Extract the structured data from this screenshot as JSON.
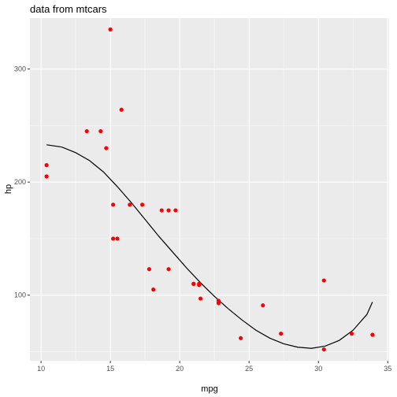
{
  "chart_data": {
    "type": "scatter",
    "title": "data from mtcars",
    "xlabel": "mpg",
    "ylabel": "hp",
    "xlim": [
      9.2,
      35.1
    ],
    "ylim": [
      42,
      345
    ],
    "x_ticks": [
      10,
      15,
      20,
      25,
      30,
      35
    ],
    "y_ticks": [
      100,
      200,
      300
    ],
    "x_tick_labels": [
      "10",
      "15",
      "20",
      "25",
      "30",
      "35"
    ],
    "y_tick_labels": [
      "100",
      "200",
      "300"
    ],
    "grid": true,
    "legend": "none",
    "colors": {
      "point": "#ff0000",
      "curve": "#000000",
      "panel": "#ebebeb",
      "grid": "#ffffff"
    },
    "series": [
      {
        "type": "scatter",
        "points": [
          [
            10.4,
            215
          ],
          [
            10.4,
            205
          ],
          [
            13.3,
            245
          ],
          [
            14.3,
            245
          ],
          [
            14.7,
            230
          ],
          [
            15.0,
            335
          ],
          [
            15.2,
            180
          ],
          [
            15.2,
            150
          ],
          [
            15.5,
            150
          ],
          [
            15.8,
            264
          ],
          [
            16.4,
            180
          ],
          [
            17.3,
            180
          ],
          [
            17.8,
            123
          ],
          [
            18.1,
            105
          ],
          [
            18.7,
            175
          ],
          [
            19.2,
            175
          ],
          [
            19.2,
            123
          ],
          [
            19.7,
            175
          ],
          [
            21.0,
            110
          ],
          [
            21.0,
            110
          ],
          [
            21.4,
            110
          ],
          [
            21.4,
            109
          ],
          [
            21.5,
            97
          ],
          [
            22.8,
            95
          ],
          [
            22.8,
            93
          ],
          [
            24.4,
            62
          ],
          [
            26.0,
            91
          ],
          [
            27.3,
            66
          ],
          [
            30.4,
            113
          ],
          [
            30.4,
            52
          ],
          [
            32.4,
            66
          ],
          [
            33.9,
            65
          ]
        ]
      },
      {
        "type": "line",
        "points": [
          [
            10.4,
            233
          ],
          [
            11.5,
            231
          ],
          [
            12.5,
            226
          ],
          [
            13.5,
            219
          ],
          [
            14.5,
            209
          ],
          [
            15.5,
            196
          ],
          [
            16.5,
            182
          ],
          [
            17.5,
            167
          ],
          [
            18.5,
            152
          ],
          [
            19.5,
            138
          ],
          [
            20.5,
            124
          ],
          [
            21.5,
            111
          ],
          [
            22.5,
            99
          ],
          [
            23.5,
            88
          ],
          [
            24.5,
            78
          ],
          [
            25.5,
            69
          ],
          [
            26.5,
            62
          ],
          [
            27.5,
            57
          ],
          [
            28.5,
            54
          ],
          [
            29.5,
            53
          ],
          [
            30.5,
            55
          ],
          [
            31.5,
            60
          ],
          [
            32.5,
            69
          ],
          [
            33.5,
            83
          ],
          [
            33.9,
            94
          ]
        ]
      }
    ]
  }
}
